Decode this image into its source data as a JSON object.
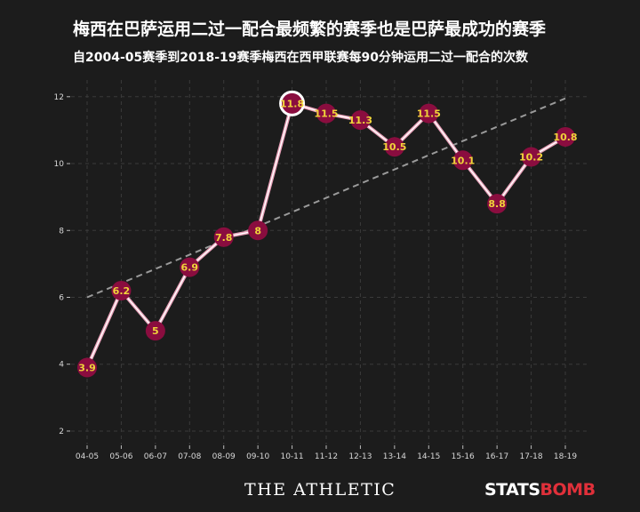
{
  "header": {
    "title": "梅西在巴萨运用二过一配合最频繁的赛季也是巴萨最成功的赛季",
    "subtitle": "自2004-05赛季到2018-19赛季梅西在西甲联赛每90分钟运用二过一配合的次数"
  },
  "footer": {
    "left_brand": "THE ATHLETIC",
    "right_brand_a": "STATS",
    "right_brand_b": "BOMB"
  },
  "colors": {
    "background": "#1c1c1c",
    "line": "#e8a0b8",
    "marker_fill": "#8a0d3f",
    "label": "#f0d43a",
    "trend": "#9a9a9a",
    "grid": "#3a3a3a"
  },
  "chart_data": {
    "type": "line",
    "categories": [
      "04-05",
      "05-06",
      "06-07",
      "07-08",
      "08-09",
      "09-10",
      "10-11",
      "11-12",
      "12-13",
      "13-14",
      "14-15",
      "15-16",
      "16-17",
      "17-18",
      "18-19"
    ],
    "values": [
      3.9,
      6.2,
      5,
      6.9,
      7.8,
      8,
      11.8,
      11.5,
      11.3,
      10.5,
      11.5,
      10.1,
      8.8,
      10.2,
      10.8
    ],
    "value_labels": [
      "3.9",
      "6.2",
      "5",
      "6.9",
      "7.8",
      "8",
      "11.8",
      "11.5",
      "11.3",
      "10.5",
      "11.5",
      "10.1",
      "8.8",
      "10.2",
      "10.8"
    ],
    "highlight_index": 6,
    "trend_line": {
      "start": 6.0,
      "end": 11.95,
      "style": "dashed"
    },
    "yticks": [
      "2",
      "4",
      "6",
      "8",
      "10",
      "12"
    ],
    "ylim": [
      1.6,
      12.5
    ],
    "grid": true
  }
}
